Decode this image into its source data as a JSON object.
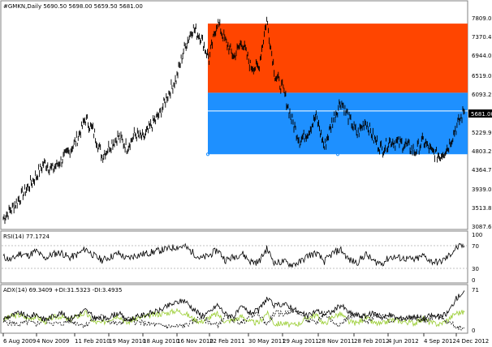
{
  "main_panel": {
    "header": "#GMKN,Daily  5690.50 5698.00 5659.50 5681.00",
    "price_labels": [
      "7809.00",
      "7370.40",
      "6944.00",
      "6519.00",
      "6093.20",
      "5681.00",
      "5229.90",
      "4803.20",
      "4364.70",
      "3939.00",
      "3513.80",
      "3087.60"
    ],
    "current_price": "5681.00"
  },
  "rsi_panel": {
    "header": "RSI(14) 77.1724",
    "levels": [
      "100",
      "70",
      "30",
      "0"
    ]
  },
  "adx_panel": {
    "header": "ADX(14) 69.3409 +DI:31.5323 -DI:3.4935",
    "levels": [
      "71",
      "0"
    ]
  },
  "time_axis": {
    "labels": [
      "6 Aug 2009",
      "4 Nov 2009",
      "11 Feb 2010",
      "19 May 2010",
      "18 Aug 2010",
      "16 Nov 2010",
      "22 Feb 2011",
      "30 May 2011",
      "29 Aug 2011",
      "28 Nov 2011",
      "28 Feb 2012",
      "4 Jun 2012",
      "4 Sep 2012",
      "4 Dec 2012"
    ]
  },
  "colors": {
    "red_zone": "#ff4500",
    "blue_zone": "#1e90ff",
    "candles": "#000000",
    "plus_di": "#9acd32",
    "grid": "#c0c0c0"
  },
  "chart_data": {
    "type": "line",
    "series": [
      {
        "name": "Close",
        "values": [
          3250,
          3450,
          3700,
          3950,
          4200,
          4500,
          4350,
          4550,
          4750,
          5050,
          5500,
          5200,
          4650,
          4900,
          5100,
          4850,
          5150,
          5050,
          5350,
          5600,
          6050,
          6400,
          7100,
          7550,
          7350,
          6850,
          7700,
          7250,
          6900,
          7250,
          6700,
          6650,
          7750,
          6500,
          6150,
          5500,
          5000,
          5200,
          5550,
          4850,
          5450,
          5900,
          5500,
          5150,
          5450,
          5050,
          4800,
          5000,
          4950,
          4900,
          4750,
          5000,
          4750,
          4650,
          4850,
          5300,
          5681
        ]
      }
    ],
    "rsi_values": [
      52,
      45,
      60,
      55,
      65,
      48,
      58,
      62,
      50,
      57,
      70,
      55,
      45,
      52,
      60,
      48,
      55,
      58,
      62,
      66,
      70,
      74,
      75,
      62,
      48,
      55,
      68,
      45,
      52,
      60,
      42,
      40,
      70,
      38,
      42,
      35,
      40,
      55,
      60,
      42,
      60,
      68,
      45,
      40,
      58,
      42,
      38,
      52,
      50,
      48,
      45,
      55,
      42,
      40,
      52,
      72,
      77
    ],
    "adx_values": [
      20,
      25,
      30,
      22,
      28,
      18,
      24,
      30,
      20,
      26,
      35,
      22,
      18,
      24,
      30,
      16,
      22,
      26,
      30,
      34,
      42,
      48,
      52,
      38,
      26,
      30,
      44,
      28,
      24,
      40,
      30,
      34,
      55,
      42,
      46,
      40,
      30,
      24,
      34,
      28,
      32,
      44,
      30,
      26,
      24,
      30,
      22,
      26,
      20,
      22,
      24,
      20,
      26,
      22,
      30,
      55,
      69
    ],
    "plus_di_values": [
      18,
      24,
      26,
      20,
      24,
      14,
      22,
      24,
      16,
      24,
      30,
      14,
      12,
      20,
      26,
      12,
      20,
      22,
      26,
      28,
      30,
      34,
      30,
      20,
      14,
      22,
      28,
      14,
      18,
      24,
      14,
      12,
      30,
      10,
      12,
      8,
      12,
      22,
      26,
      10,
      24,
      28,
      14,
      12,
      22,
      12,
      10,
      18,
      16,
      14,
      12,
      20,
      12,
      10,
      18,
      30,
      31
    ],
    "minus_di_values": [
      14,
      12,
      10,
      14,
      10,
      18,
      12,
      10,
      16,
      12,
      8,
      20,
      24,
      14,
      10,
      20,
      14,
      12,
      10,
      8,
      6,
      6,
      8,
      14,
      22,
      14,
      8,
      24,
      18,
      12,
      26,
      28,
      10,
      30,
      28,
      34,
      30,
      16,
      12,
      30,
      14,
      10,
      24,
      26,
      12,
      24,
      28,
      16,
      18,
      20,
      22,
      14,
      22,
      24,
      14,
      6,
      3
    ],
    "ylim": [
      3087.6,
      7809
    ],
    "zones": {
      "red": [
        6093.2,
        7660
      ],
      "blue": [
        4700,
        6093.2
      ],
      "mid_line": 5681
    }
  }
}
